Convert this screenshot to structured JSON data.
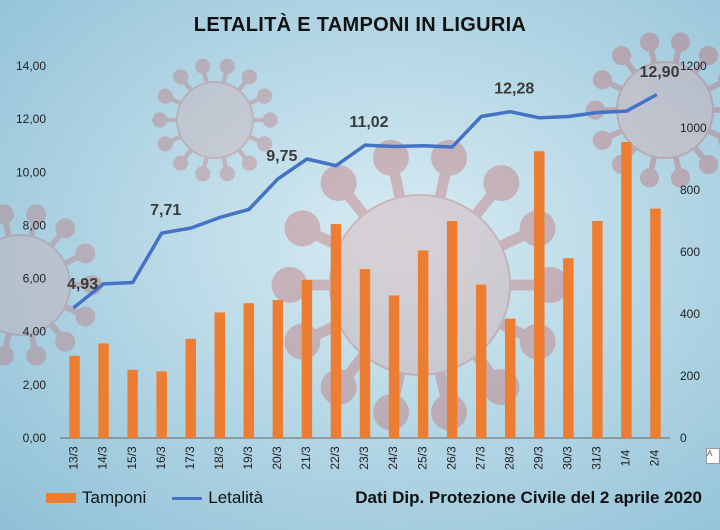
{
  "title": "LETALITÀ E TAMPONI IN LIGURIA",
  "source_note": "Dati Dip. Protezione Civile del 2 aprile 2020",
  "edge_label": "A",
  "colors": {
    "bar": "#ed7d31",
    "line": "#4472c4",
    "virus": "#c25b5b",
    "axis_text": "#222222"
  },
  "chart_data": {
    "type": "bar",
    "categories": [
      "13/3",
      "14/3",
      "15/3",
      "16/3",
      "17/3",
      "18/3",
      "19/3",
      "20/3",
      "21/3",
      "22/3",
      "23/3",
      "24/3",
      "25/3",
      "26/3",
      "27/3",
      "28/3",
      "29/3",
      "30/3",
      "31/3",
      "1/4",
      "2/4"
    ],
    "series": [
      {
        "name": "Tamponi",
        "type": "bar",
        "axis": "right",
        "values": [
          265,
          305,
          220,
          215,
          320,
          405,
          435,
          445,
          510,
          690,
          545,
          460,
          605,
          700,
          495,
          385,
          925,
          580,
          700,
          955,
          740
        ]
      },
      {
        "name": "Letalità",
        "type": "line",
        "axis": "left",
        "values": [
          4.93,
          5.8,
          5.85,
          7.71,
          7.9,
          8.3,
          8.6,
          9.75,
          10.5,
          10.25,
          11.02,
          10.97,
          11.0,
          10.95,
          12.1,
          12.28,
          12.05,
          12.1,
          12.25,
          12.3,
          12.9
        ]
      }
    ],
    "data_labels": [
      {
        "index": 0,
        "text": "4,93"
      },
      {
        "index": 3,
        "text": "7,71"
      },
      {
        "index": 7,
        "text": "9,75"
      },
      {
        "index": 10,
        "text": "11,02"
      },
      {
        "index": 15,
        "text": "12,28"
      },
      {
        "index": 20,
        "text": "12,90"
      }
    ],
    "y_left": {
      "min": 0,
      "max": 14,
      "ticks": [
        "0,00",
        "2,00",
        "4,00",
        "6,00",
        "8,00",
        "10,00",
        "12,00",
        "14,00"
      ]
    },
    "y_right": {
      "min": 0,
      "max": 1200,
      "ticks": [
        "0",
        "200",
        "400",
        "600",
        "800",
        "1000",
        "1200"
      ]
    },
    "legend": [
      "Tamponi",
      "Letalità"
    ],
    "legend_position": "bottom",
    "grid": false
  }
}
